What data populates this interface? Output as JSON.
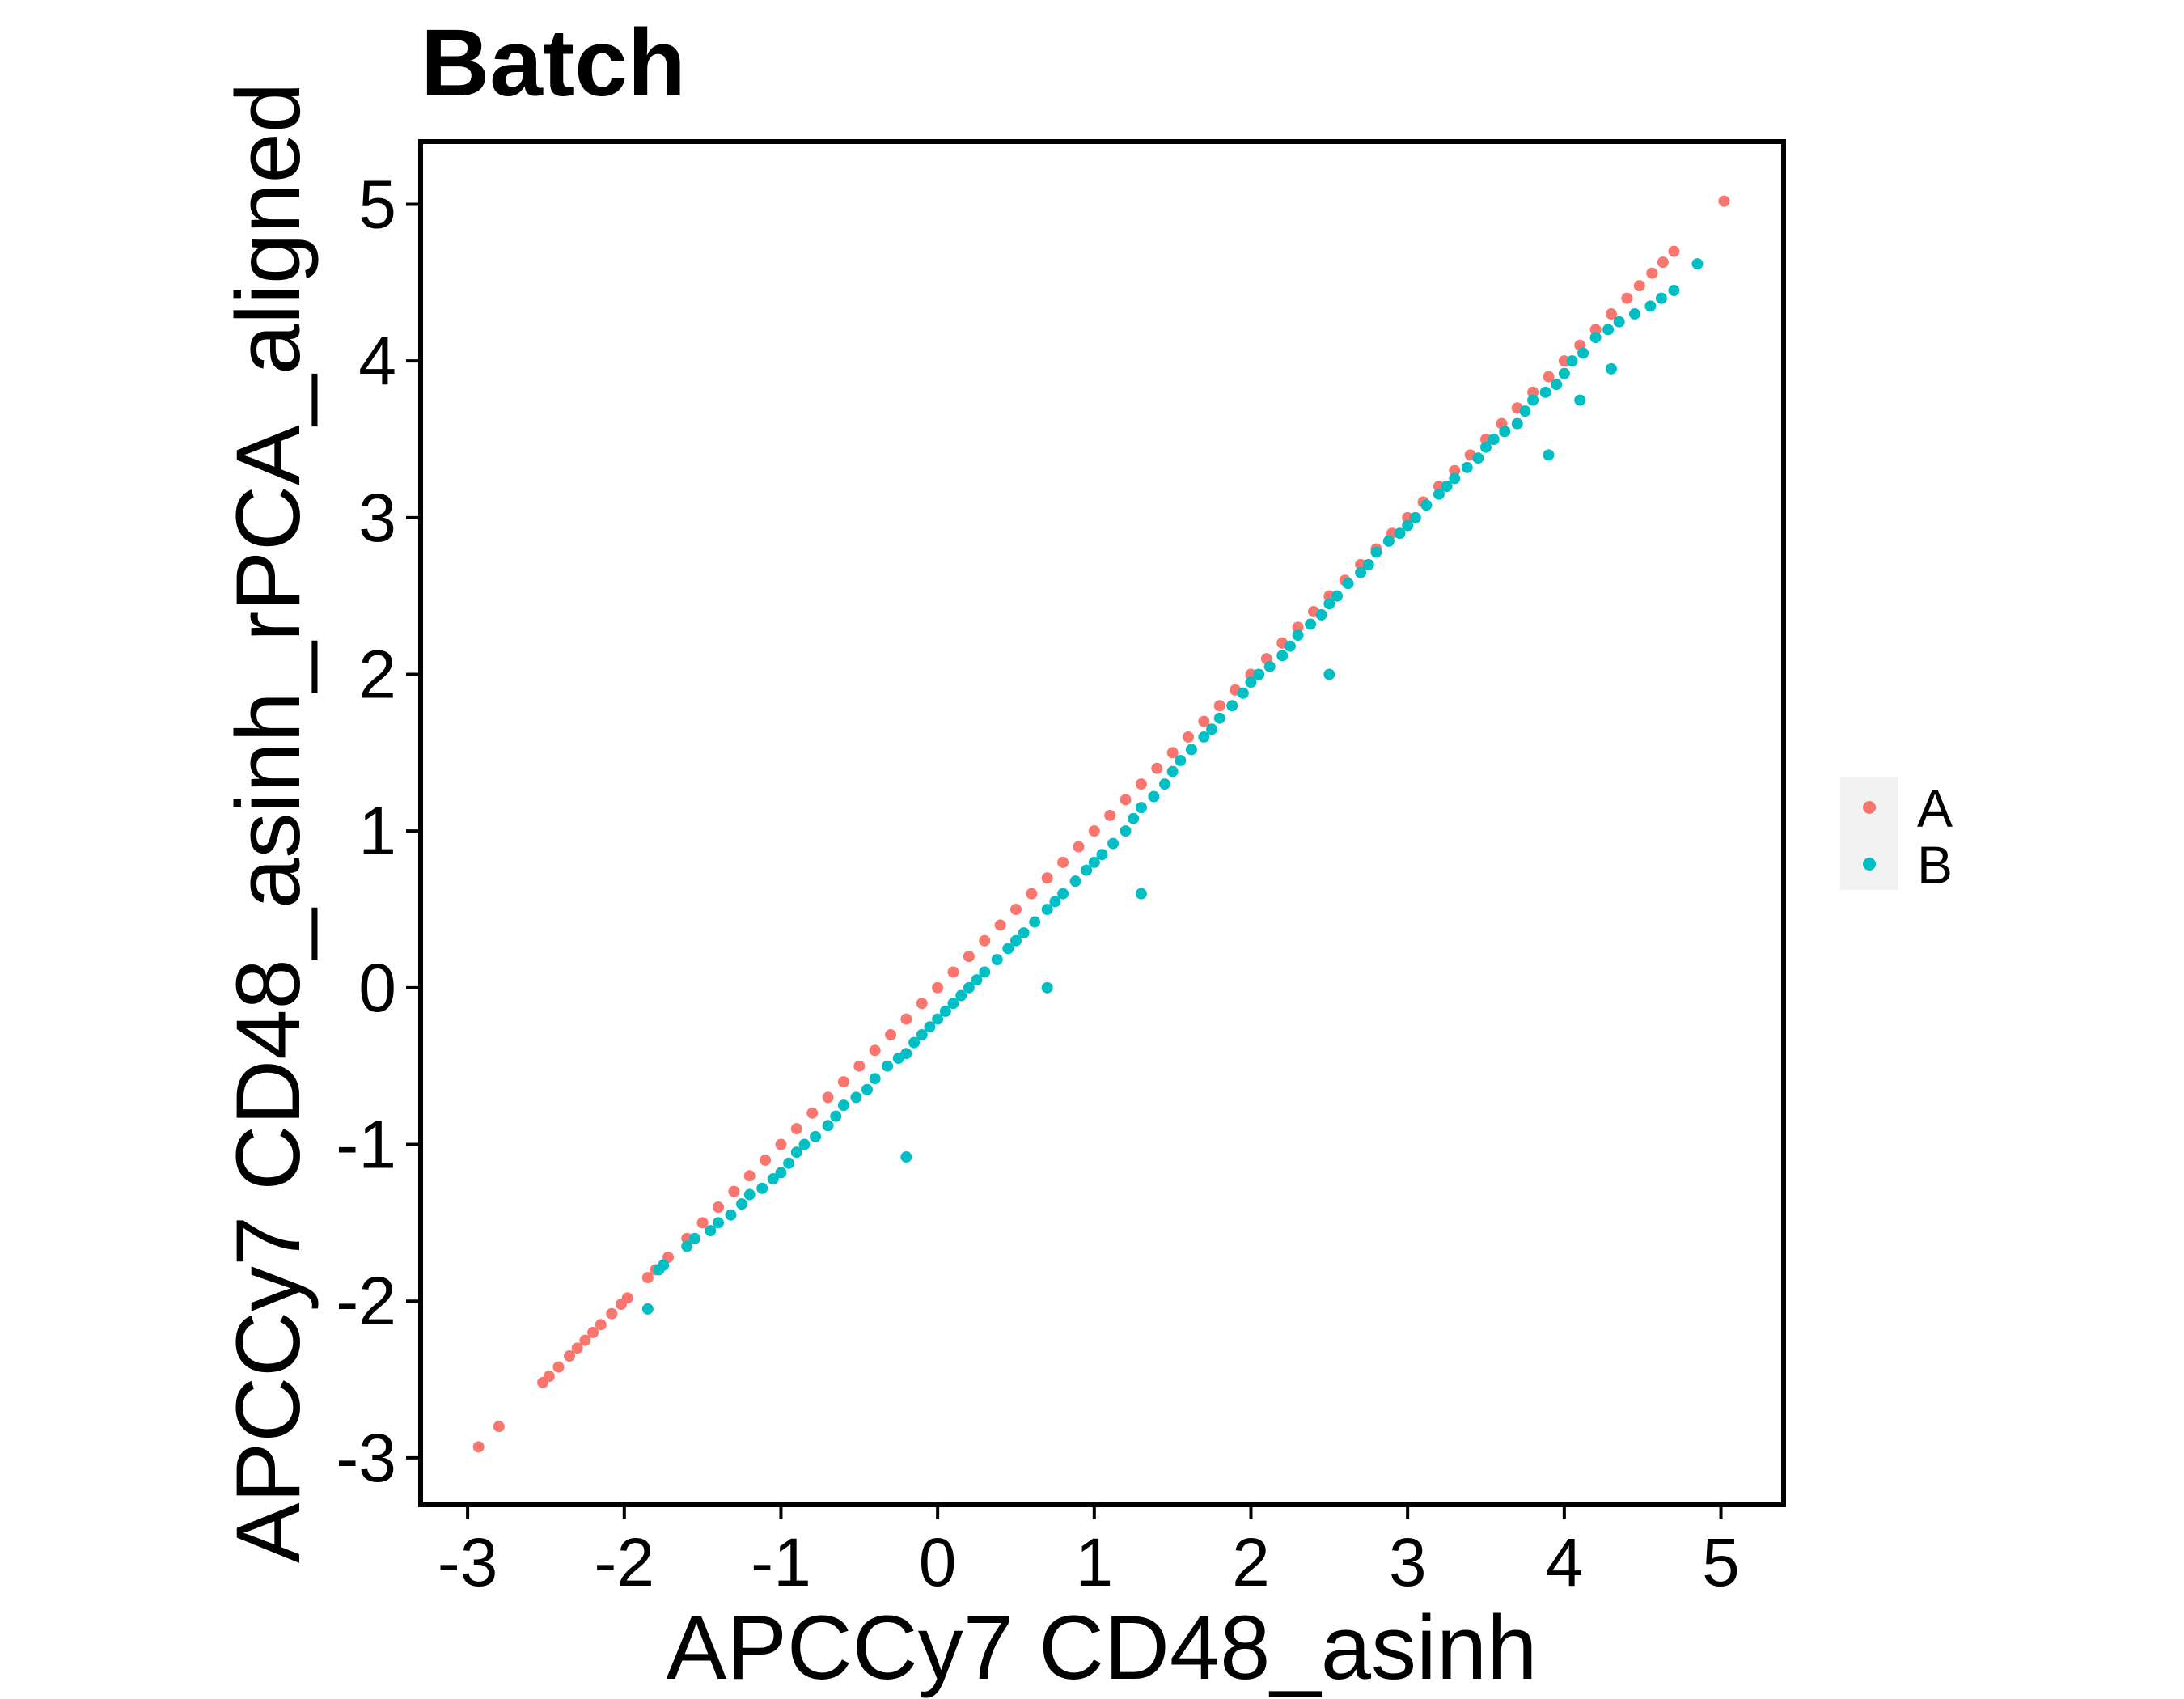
{
  "chart_data": {
    "type": "scatter",
    "title": "Batch",
    "xlabel": "APCCy7 CD48_asinh",
    "ylabel": "APCCy7 CD48_asinh_rPCA_aligned",
    "xlim": [
      -3.3,
      5.4
    ],
    "ylim": [
      -3.3,
      5.4
    ],
    "x_ticks": [
      "-3",
      "-2",
      "-1",
      "0",
      "1",
      "2",
      "3",
      "4",
      "5"
    ],
    "y_ticks": [
      "-3",
      "-2",
      "-1",
      "0",
      "1",
      "2",
      "3",
      "4",
      "5"
    ],
    "grid": false,
    "legend_position": "right",
    "series": [
      {
        "name": "A",
        "color": "#F8766D",
        "x": [
          -2.93,
          -2.8,
          -2.52,
          -2.48,
          -2.42,
          -2.35,
          -2.3,
          -2.25,
          -2.2,
          -2.15,
          -2.08,
          -2.02,
          -1.98,
          -1.85,
          -1.8,
          -1.72,
          -1.6,
          -1.5,
          -1.4,
          -1.3,
          -1.2,
          -1.1,
          -1.0,
          -0.9,
          -0.8,
          -0.7,
          -0.6,
          -0.5,
          -0.4,
          -0.3,
          -0.2,
          -0.1,
          0.0,
          0.1,
          0.2,
          0.3,
          0.4,
          0.5,
          0.6,
          0.7,
          0.8,
          0.9,
          1.0,
          1.1,
          1.2,
          1.3,
          1.4,
          1.5,
          1.6,
          1.7,
          1.8,
          1.9,
          2.0,
          2.1,
          2.2,
          2.3,
          2.4,
          2.5,
          2.6,
          2.7,
          2.8,
          2.9,
          3.0,
          3.1,
          3.2,
          3.3,
          3.4,
          3.5,
          3.6,
          3.7,
          3.8,
          3.9,
          4.0,
          4.1,
          4.2,
          4.3,
          4.4,
          4.48,
          4.56,
          4.63,
          4.7,
          5.02
        ],
        "y": [
          -2.93,
          -2.8,
          -2.52,
          -2.48,
          -2.42,
          -2.35,
          -2.3,
          -2.25,
          -2.2,
          -2.15,
          -2.08,
          -2.02,
          -1.98,
          -1.85,
          -1.8,
          -1.72,
          -1.6,
          -1.5,
          -1.4,
          -1.3,
          -1.2,
          -1.1,
          -1.0,
          -0.9,
          -0.8,
          -0.7,
          -0.6,
          -0.5,
          -0.4,
          -0.3,
          -0.2,
          -0.1,
          0.0,
          0.1,
          0.2,
          0.3,
          0.4,
          0.5,
          0.6,
          0.7,
          0.8,
          0.9,
          1.0,
          1.1,
          1.2,
          1.3,
          1.4,
          1.5,
          1.6,
          1.7,
          1.8,
          1.9,
          2.0,
          2.1,
          2.2,
          2.3,
          2.4,
          2.5,
          2.6,
          2.7,
          2.8,
          2.9,
          3.0,
          3.1,
          3.2,
          3.3,
          3.4,
          3.5,
          3.6,
          3.7,
          3.8,
          3.9,
          4.0,
          4.1,
          4.2,
          4.3,
          4.4,
          4.48,
          4.56,
          4.63,
          4.7,
          5.02
        ]
      },
      {
        "name": "B",
        "color": "#00BFC4",
        "x": [
          -1.75,
          -1.78,
          -1.6,
          -1.55,
          -1.45,
          -1.4,
          -1.32,
          -1.25,
          -1.2,
          -1.12,
          -1.05,
          -1.0,
          -0.95,
          -0.9,
          -0.85,
          -0.78,
          -0.7,
          -0.65,
          -0.6,
          -0.52,
          -0.45,
          -0.4,
          -0.32,
          -0.25,
          -0.2,
          -0.15,
          -0.1,
          -0.05,
          0.0,
          0.05,
          0.1,
          0.15,
          0.2,
          0.25,
          0.3,
          0.38,
          0.45,
          0.5,
          0.55,
          0.62,
          0.7,
          0.75,
          0.8,
          0.88,
          0.95,
          1.0,
          1.05,
          1.12,
          1.2,
          1.25,
          1.3,
          1.38,
          1.45,
          1.5,
          1.55,
          1.62,
          1.7,
          1.75,
          1.8,
          1.88,
          1.95,
          2.0,
          2.05,
          2.12,
          2.2,
          2.25,
          2.3,
          2.38,
          2.45,
          2.5,
          2.55,
          2.62,
          2.7,
          2.75,
          2.8,
          2.88,
          2.95,
          3.0,
          3.05,
          3.12,
          3.2,
          3.25,
          3.3,
          3.38,
          3.45,
          3.5,
          3.55,
          3.62,
          3.7,
          3.75,
          3.8,
          3.88,
          3.95,
          4.0,
          4.05,
          4.12,
          4.2,
          4.28,
          4.35,
          4.45,
          4.55,
          4.62,
          4.7,
          4.85,
          -0.2,
          -1.85,
          0.7,
          1.3,
          2.5,
          3.9,
          4.1,
          4.3
        ],
        "y": [
          -1.77,
          -1.8,
          -1.65,
          -1.6,
          -1.55,
          -1.5,
          -1.45,
          -1.38,
          -1.32,
          -1.28,
          -1.22,
          -1.18,
          -1.12,
          -1.05,
          -1.0,
          -0.95,
          -0.88,
          -0.82,
          -0.75,
          -0.7,
          -0.65,
          -0.58,
          -0.5,
          -0.45,
          -0.42,
          -0.35,
          -0.3,
          -0.25,
          -0.2,
          -0.15,
          -0.1,
          -0.05,
          0.0,
          0.05,
          0.1,
          0.18,
          0.25,
          0.3,
          0.35,
          0.42,
          0.5,
          0.55,
          0.6,
          0.68,
          0.75,
          0.8,
          0.85,
          0.92,
          1.0,
          1.08,
          1.15,
          1.22,
          1.3,
          1.38,
          1.45,
          1.52,
          1.6,
          1.65,
          1.72,
          1.8,
          1.88,
          1.95,
          2.0,
          2.05,
          2.12,
          2.18,
          2.25,
          2.32,
          2.38,
          2.45,
          2.5,
          2.58,
          2.65,
          2.7,
          2.78,
          2.85,
          2.9,
          2.95,
          3.0,
          3.08,
          3.15,
          3.2,
          3.25,
          3.32,
          3.38,
          3.45,
          3.5,
          3.55,
          3.6,
          3.68,
          3.75,
          3.8,
          3.85,
          3.92,
          4.0,
          4.05,
          4.15,
          4.2,
          4.25,
          4.3,
          4.35,
          4.4,
          4.45,
          4.62,
          -1.08,
          -2.05,
          0.0,
          0.6,
          2.0,
          3.4,
          3.75,
          3.95
        ]
      }
    ]
  }
}
